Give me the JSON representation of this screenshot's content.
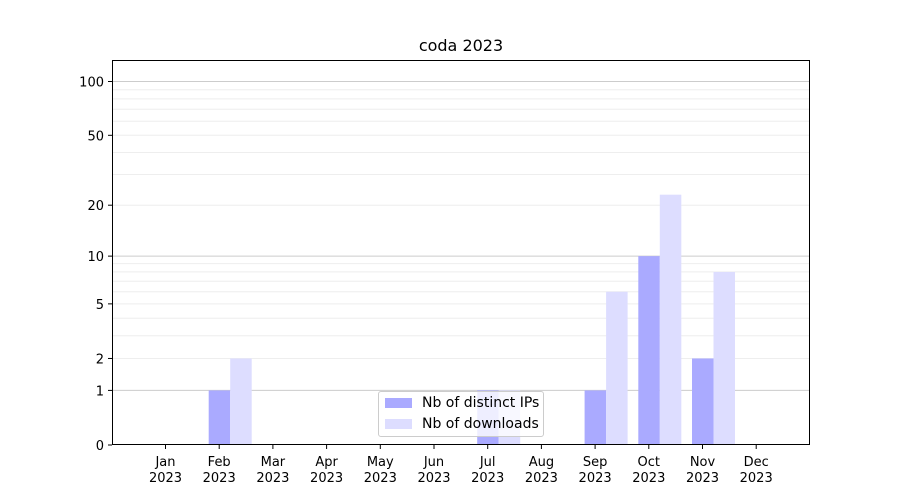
{
  "chart_data": {
    "type": "bar",
    "title": "coda 2023",
    "xlabel": "",
    "ylabel": "",
    "y_scale": "symlog",
    "yticks": [
      0,
      1,
      2,
      5,
      10,
      20,
      50,
      100
    ],
    "ylim": [
      0,
      130
    ],
    "grid": "horizontal",
    "legend_position": "lower-center",
    "categories": [
      "Jan\n2023",
      "Feb\n2023",
      "Mar\n2023",
      "Apr\n2023",
      "May\n2023",
      "Jun\n2023",
      "Jul\n2023",
      "Aug\n2023",
      "Sep\n2023",
      "Oct\n2023",
      "Nov\n2023",
      "Dec\n2023"
    ],
    "category_months": [
      "Jan",
      "Feb",
      "Mar",
      "Apr",
      "May",
      "Jun",
      "Jul",
      "Aug",
      "Sep",
      "Oct",
      "Nov",
      "Dec"
    ],
    "category_year": "2023",
    "series": [
      {
        "name": "Nb of distinct IPs",
        "color": "#aaaaff",
        "values": [
          0,
          1,
          0,
          0,
          0,
          0,
          1,
          0,
          1,
          10,
          2,
          0
        ]
      },
      {
        "name": "Nb of downloads",
        "color": "#ddddff",
        "values": [
          0,
          2,
          0,
          0,
          0,
          0,
          1,
          0,
          6,
          23,
          8,
          0
        ]
      }
    ]
  }
}
